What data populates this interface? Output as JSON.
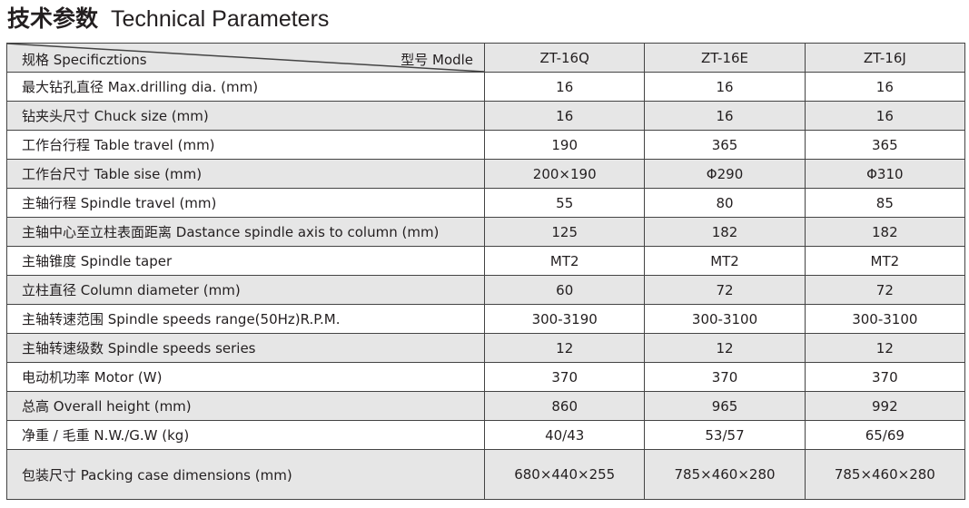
{
  "title": {
    "cn": "技术参数",
    "en": "Technical Parameters"
  },
  "header": {
    "spec": "规格 Specificztions",
    "model": "型号 Modle",
    "models": [
      "ZT-16Q",
      "ZT-16E",
      "ZT-16J"
    ]
  },
  "rows": [
    {
      "spec": "最大钻孔直径  Max.drilling dia. (mm)",
      "values": [
        "16",
        "16",
        "16"
      ]
    },
    {
      "spec": "钻夹头尺寸  Chuck size (mm)",
      "values": [
        "16",
        "16",
        "16"
      ]
    },
    {
      "spec": "工作台行程  Table travel (mm)",
      "values": [
        "190",
        "365",
        "365"
      ]
    },
    {
      "spec": "工作台尺寸  Table sise (mm)",
      "values": [
        "200×190",
        "Φ290",
        "Φ310"
      ]
    },
    {
      "spec": "主轴行程  Spindle travel (mm)",
      "values": [
        "55",
        "80",
        "85"
      ]
    },
    {
      "spec": "主轴中心至立柱表面距离  Dastance spindle axis to column (mm)",
      "values": [
        "125",
        "182",
        "182"
      ]
    },
    {
      "spec": "主轴锥度  Spindle taper",
      "values": [
        "MT2",
        "MT2",
        "MT2"
      ]
    },
    {
      "spec": "立柱直径  Column diameter (mm)",
      "values": [
        "60",
        "72",
        "72"
      ]
    },
    {
      "spec": "主轴转速范围  Spindle speeds range(50Hz)R.P.M.",
      "values": [
        "300-3190",
        "300-3100",
        "300-3100"
      ]
    },
    {
      "spec": "主轴转速级数  Spindle speeds series",
      "values": [
        "12",
        "12",
        "12"
      ]
    },
    {
      "spec": "电动机功率  Motor (W)",
      "values": [
        "370",
        "370",
        "370"
      ]
    },
    {
      "spec": "总高  Overall height (mm)",
      "values": [
        "860",
        "965",
        "992"
      ]
    },
    {
      "spec": "净重 / 毛重  N.W./G.W (kg)",
      "values": [
        "40/43",
        "53/57",
        "65/69"
      ]
    },
    {
      "spec": "包装尺寸  Packing case dimensions (mm)",
      "values": [
        "680×440×255",
        "785×460×280",
        "785×460×280"
      ]
    }
  ]
}
